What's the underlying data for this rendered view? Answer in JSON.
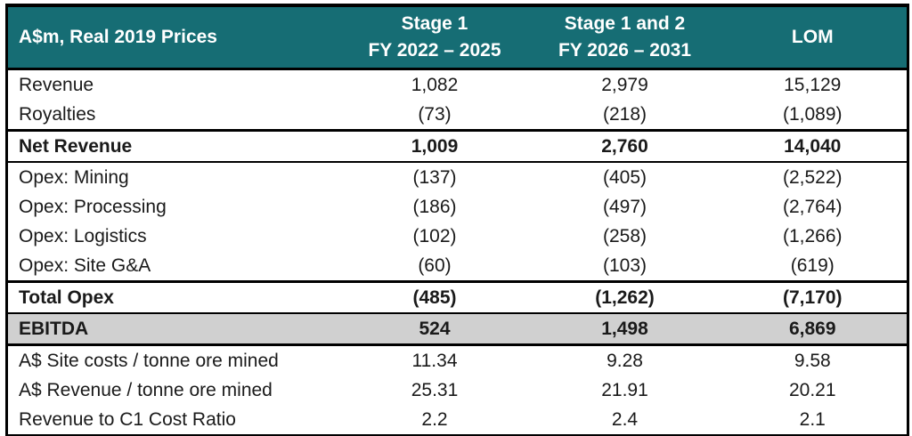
{
  "table": {
    "title": "A$m, Real 2019 Prices",
    "columns": [
      {
        "line1": "Stage 1",
        "line2": "FY 2022 – 2025"
      },
      {
        "line1": "Stage 1 and 2",
        "line2": "FY 2026 – 2031"
      },
      {
        "line1": "LOM",
        "line2": ""
      }
    ],
    "rows": [
      {
        "label": "Revenue",
        "values": [
          "1,082",
          "2,979",
          "15,129"
        ]
      },
      {
        "label": "Royalties",
        "values": [
          "(73)",
          "(218)",
          "(1,089)"
        ]
      },
      {
        "label": "Net Revenue",
        "values": [
          "1,009",
          "2,760",
          "14,040"
        ]
      },
      {
        "label": "Opex: Mining",
        "values": [
          "(137)",
          "(405)",
          "(2,522)"
        ]
      },
      {
        "label": "Opex: Processing",
        "values": [
          "(186)",
          "(497)",
          "(2,764)"
        ]
      },
      {
        "label": "Opex: Logistics",
        "values": [
          "(102)",
          "(258)",
          "(1,266)"
        ]
      },
      {
        "label": "Opex: Site G&A",
        "values": [
          "(60)",
          "(103)",
          "(619)"
        ]
      },
      {
        "label": "Total Opex",
        "values": [
          "(485)",
          "(1,262)",
          "(7,170)"
        ]
      },
      {
        "label": "EBITDA",
        "values": [
          "524",
          "1,498",
          "6,869"
        ]
      },
      {
        "label": "A$ Site costs / tonne ore mined",
        "values": [
          "11.34",
          "9.28",
          "9.58"
        ]
      },
      {
        "label": "A$ Revenue / tonne ore mined",
        "values": [
          "25.31",
          "21.91",
          "20.21"
        ]
      },
      {
        "label": "Revenue to C1 Cost Ratio",
        "values": [
          "2.2",
          "2.4",
          "2.1"
        ]
      }
    ],
    "colors": {
      "header_bg": "#166d74",
      "header_text": "#ffffff",
      "ebitda_bg": "#d0d0d0",
      "border": "#000000",
      "body_text": "#1a1a1a"
    }
  },
  "chart_data": {
    "type": "table",
    "title": "A$m, Real 2019 Prices",
    "columns": [
      "Stage 1 FY 2022 – 2025",
      "Stage 1 and 2 FY 2026 – 2031",
      "LOM"
    ],
    "rows": [
      [
        "Revenue",
        1082,
        2979,
        15129
      ],
      [
        "Royalties",
        -73,
        -218,
        -1089
      ],
      [
        "Net Revenue",
        1009,
        2760,
        14040
      ],
      [
        "Opex: Mining",
        -137,
        -405,
        -2522
      ],
      [
        "Opex: Processing",
        -186,
        -497,
        -2764
      ],
      [
        "Opex: Logistics",
        -102,
        -258,
        -1266
      ],
      [
        "Opex: Site G&A",
        -60,
        -103,
        -619
      ],
      [
        "Total Opex",
        -485,
        -1262,
        -7170
      ],
      [
        "EBITDA",
        524,
        1498,
        6869
      ],
      [
        "A$ Site costs / tonne ore mined",
        11.34,
        9.28,
        9.58
      ],
      [
        "A$ Revenue / tonne ore mined",
        25.31,
        21.91,
        20.21
      ],
      [
        "Revenue to C1 Cost Ratio",
        2.2,
        2.4,
        2.1
      ]
    ]
  }
}
